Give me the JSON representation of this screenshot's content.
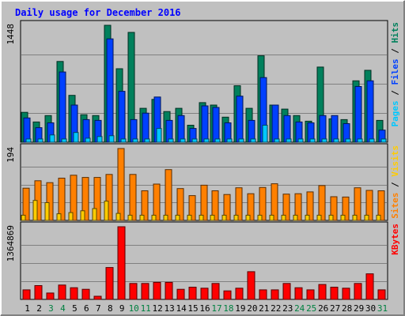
{
  "chart_data": {
    "type": "bar",
    "title": "Daily usage for December 2016",
    "colors": {
      "background": "#c0c0c0",
      "plot": "#c0c0c0",
      "grid": "#808080",
      "title": "#0000ff",
      "hits": "#00805c",
      "files": "#0040ff",
      "pages": "#00c8ff",
      "visits": "#ffcc00",
      "sites": "#ff8000",
      "kbytes": "#ff0000",
      "weekend_label": "#008040",
      "weekday_label": "#000000"
    },
    "days": [
      {
        "label": "1",
        "weekend": false
      },
      {
        "label": "2",
        "weekend": false
      },
      {
        "label": "3",
        "weekend": true
      },
      {
        "label": "4",
        "weekend": true
      },
      {
        "label": "5",
        "weekend": false
      },
      {
        "label": "6",
        "weekend": false
      },
      {
        "label": "7",
        "weekend": false
      },
      {
        "label": "8",
        "weekend": false
      },
      {
        "label": "9",
        "weekend": false
      },
      {
        "label": "10",
        "weekend": true
      },
      {
        "label": "11",
        "weekend": true
      },
      {
        "label": "12",
        "weekend": false
      },
      {
        "label": "13",
        "weekend": false
      },
      {
        "label": "14",
        "weekend": false
      },
      {
        "label": "15",
        "weekend": false
      },
      {
        "label": "16",
        "weekend": false
      },
      {
        "label": "17",
        "weekend": true
      },
      {
        "label": "18",
        "weekend": true
      },
      {
        "label": "19",
        "weekend": false
      },
      {
        "label": "20",
        "weekend": false
      },
      {
        "label": "21",
        "weekend": false
      },
      {
        "label": "22",
        "weekend": false
      },
      {
        "label": "23",
        "weekend": false
      },
      {
        "label": "24",
        "weekend": true
      },
      {
        "label": "25",
        "weekend": true
      },
      {
        "label": "26",
        "weekend": false
      },
      {
        "label": "27",
        "weekend": false
      },
      {
        "label": "28",
        "weekend": false
      },
      {
        "label": "29",
        "weekend": false
      },
      {
        "label": "30",
        "weekend": false
      },
      {
        "label": "31",
        "weekend": true
      }
    ],
    "panels": [
      {
        "id": "hits-files-pages",
        "max_label": "1448",
        "ymax": 1448,
        "legend": [
          {
            "text": "Pages",
            "color": "#00c8ff"
          },
          {
            "text": " / ",
            "color": "#000000"
          },
          {
            "text": "Files",
            "color": "#0040ff"
          },
          {
            "text": " / ",
            "color": "#000000"
          },
          {
            "text": "Hits",
            "color": "#00805c"
          }
        ],
        "series": [
          {
            "name": "Hits",
            "color": "#00805c",
            "values": [
              370,
              250,
              330,
              1000,
              580,
              340,
              330,
              1448,
              910,
              1360,
              420,
              530,
              380,
              420,
              210,
              490,
              460,
              310,
              700,
              420,
              1070,
              460,
              410,
              330,
              260,
              930,
              290,
              280,
              760,
              890,
              270
            ]
          },
          {
            "name": "Files",
            "color": "#0040ff",
            "values": [
              300,
              180,
              240,
              870,
              460,
              280,
              270,
              1280,
              630,
              280,
              360,
              560,
              270,
              330,
              170,
              450,
              430,
              240,
              570,
              270,
              800,
              460,
              330,
              250,
              240,
              330,
              330,
              230,
              690,
              760,
              150
            ]
          },
          {
            "name": "Pages",
            "color": "#00c8ff",
            "values": [
              40,
              40,
              90,
              40,
              120,
              50,
              70,
              80,
              40,
              40,
              40,
              170,
              40,
              40,
              40,
              40,
              40,
              40,
              40,
              40,
              210,
              40,
              40,
              40,
              40,
              40,
              40,
              40,
              40,
              40,
              40
            ]
          }
        ]
      },
      {
        "id": "visits-sites",
        "max_label": "194",
        "ymax": 194,
        "legend": [
          {
            "text": "Sites",
            "color": "#ff8000"
          },
          {
            "text": " / ",
            "color": "#000000"
          },
          {
            "text": "Visits",
            "color": "#ffcc00"
          }
        ],
        "series": [
          {
            "name": "Sites",
            "color": "#ff8000",
            "values": [
              87,
              107,
              102,
              114,
              122,
              116,
              116,
              124,
              194,
              124,
              80,
              98,
              137,
              86,
              67,
              95,
              80,
              70,
              88,
              72,
              89,
              99,
              71,
              72,
              77,
              94,
              64,
              63,
              88,
              81,
              80
            ]
          },
          {
            "name": "Visits",
            "color": "#ffcc00",
            "values": [
              14,
              54,
              48,
              18,
              21,
              26,
              32,
              52,
              19,
              14,
              14,
              14,
              14,
              14,
              14,
              14,
              14,
              14,
              14,
              14,
              14,
              14,
              14,
              14,
              14,
              14,
              14,
              14,
              14,
              14,
              14
            ]
          }
        ]
      },
      {
        "id": "kbytes",
        "max_label": "1364869",
        "ymax": 1364869,
        "legend": [
          {
            "text": "KBytes",
            "color": "#ff0000"
          }
        ],
        "series": [
          {
            "name": "KBytes",
            "color": "#ff0000",
            "values": [
              180000,
              260000,
              120000,
              270000,
              220000,
              190000,
              60000,
              600000,
              1364869,
              300000,
              300000,
              320000,
              320000,
              190000,
              230000,
              210000,
              300000,
              160000,
              210000,
              520000,
              180000,
              180000,
              300000,
              220000,
              180000,
              280000,
              230000,
              210000,
              300000,
              480000,
              180000
            ]
          }
        ]
      }
    ]
  }
}
